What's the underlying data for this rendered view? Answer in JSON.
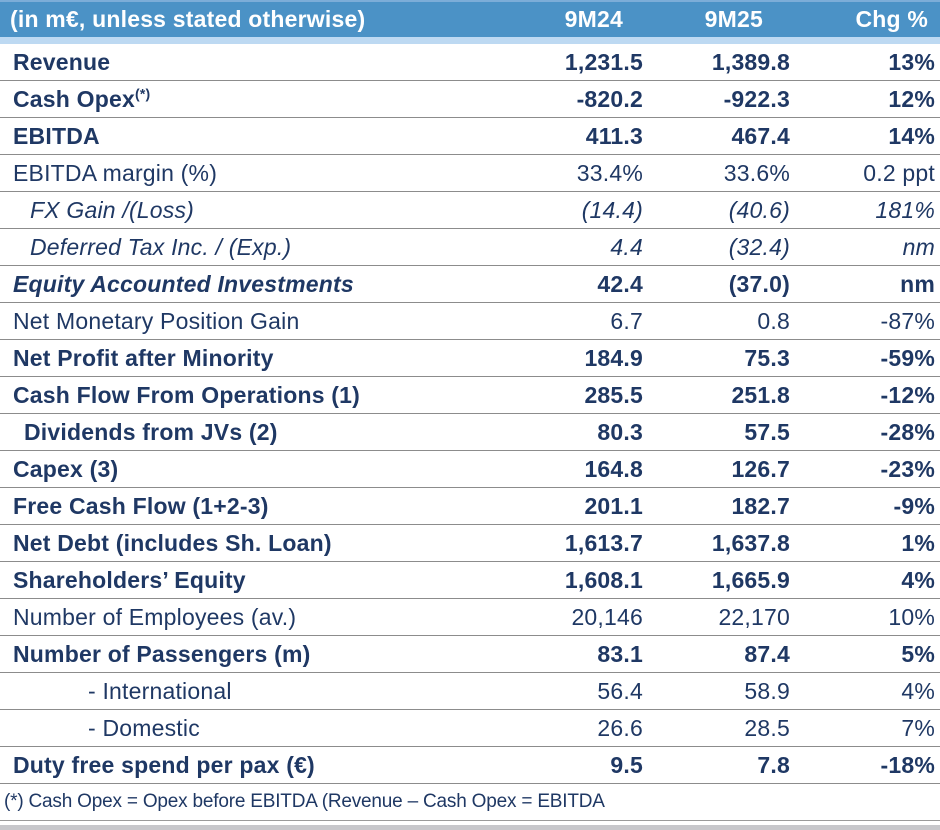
{
  "chart_data": {
    "type": "table",
    "columns": [
      "(in m€, unless stated otherwise)",
      "9M24",
      "9M25",
      "Chg %"
    ],
    "rows": [
      {
        "label": "Revenue",
        "v1": "1,231.5",
        "v2": "1,389.8",
        "chg": "13%",
        "style": "bold",
        "indent": 0
      },
      {
        "label": "Cash Opex",
        "sup": "(*)",
        "v1": "-820.2",
        "v2": "-922.3",
        "chg": "12%",
        "style": "bold",
        "indent": 0
      },
      {
        "label": "EBITDA",
        "v1": "411.3",
        "v2": "467.4",
        "chg": "14%",
        "style": "bold",
        "indent": 0
      },
      {
        "label": "EBITDA margin (%)",
        "v1": "33.4%",
        "v2": "33.6%",
        "chg": "0.2 ppt",
        "style": "regular",
        "indent": 0
      },
      {
        "label": "FX Gain /(Loss)",
        "v1": "(14.4)",
        "v2": "(40.6)",
        "chg": "181%",
        "style": "italic",
        "indent": 2
      },
      {
        "label": "Deferred Tax Inc. / (Exp.)",
        "v1": "4.4",
        "v2": "(32.4)",
        "chg": "nm",
        "style": "italic",
        "indent": 2
      },
      {
        "label": "Equity Accounted Investments",
        "v1": "42.4",
        "v2": "(37.0)",
        "chg": "nm",
        "style": "bi",
        "indent": 0
      },
      {
        "label": "Net Monetary Position Gain",
        "v1": "6.7",
        "v2": "0.8",
        "chg": "-87%",
        "style": "regular",
        "indent": 0
      },
      {
        "label": "Net Profit after Minority",
        "v1": "184.9",
        "v2": "75.3",
        "chg": "-59%",
        "style": "bold",
        "indent": 0
      },
      {
        "label": "Cash Flow From Operations (1)",
        "v1": "285.5",
        "v2": "251.8",
        "chg": "-12%",
        "style": "bold",
        "indent": 0
      },
      {
        "label": "Dividends from JVs (2)",
        "v1": "80.3",
        "v2": "57.5",
        "chg": "-28%",
        "style": "bold",
        "indent": 1
      },
      {
        "label": "Capex (3)",
        "v1": "164.8",
        "v2": "126.7",
        "chg": "-23%",
        "style": "bold",
        "indent": 0
      },
      {
        "label": "Free Cash Flow (1+2-3)",
        "v1": "201.1",
        "v2": "182.7",
        "chg": "-9%",
        "style": "bold",
        "indent": 0
      },
      {
        "label": "Net Debt (includes Sh. Loan)",
        "v1": "1,613.7",
        "v2": "1,637.8",
        "chg": "1%",
        "style": "bold",
        "indent": 0
      },
      {
        "label": "Shareholders’ Equity",
        "v1": "1,608.1",
        "v2": "1,665.9",
        "chg": "4%",
        "style": "bold",
        "indent": 0
      },
      {
        "label": "Number of Employees (av.)",
        "v1": "20,146",
        "v2": "22,170",
        "chg": "10%",
        "style": "regular",
        "indent": 0
      },
      {
        "label": "Number of Passengers (m)",
        "v1": "83.1",
        "v2": "87.4",
        "chg": "5%",
        "style": "bold",
        "indent": 0
      },
      {
        "label": "- International",
        "v1": "56.4",
        "v2": "58.9",
        "chg": "4%",
        "style": "regular",
        "indent": 3
      },
      {
        "label": "- Domestic",
        "v1": "26.6",
        "v2": "28.5",
        "chg": "7%",
        "style": "regular",
        "indent": 3
      },
      {
        "label": "Duty free spend per pax (€)",
        "v1": "9.5",
        "v2": "7.8",
        "chg": "-18%",
        "style": "bold",
        "indent": 0
      }
    ],
    "footnote": "(*) Cash Opex = Opex before EBITDA (Revenue – Cash Opex = EBITDA"
  },
  "colors": {
    "header_bg": "#4B92C6",
    "header_text": "#FFFFFF",
    "accent_strip": "#BDD9F2",
    "text": "#1F3864",
    "grid_line": "#8C8C8C",
    "bottom_bar": "#C7C7CB"
  }
}
